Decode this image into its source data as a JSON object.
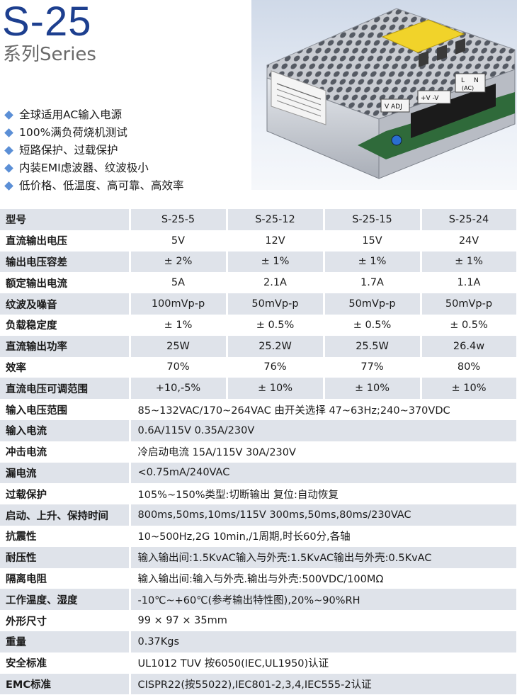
{
  "header": {
    "title": "S-25",
    "subtitle": "系列Series"
  },
  "features": [
    "全球适用AC输入电源",
    "100%满负荷烧机测试",
    "短路保护、过载保护",
    "内装EMI虑波器、纹波极小",
    "低价格、低温度、高可靠、高效率"
  ],
  "photo": {
    "labels": {
      "v_adj": "V ADJ",
      "output": "+V  -V",
      "l": "L",
      "n": "N",
      "ac": "(AC)"
    }
  },
  "table": {
    "header": {
      "label": "型号",
      "models": [
        "S-25-5",
        "S-25-12",
        "S-25-15",
        "S-25-24"
      ]
    },
    "model_rows": [
      {
        "label": "直流输出电压",
        "values": [
          "5V",
          "12V",
          "15V",
          "24V"
        ]
      },
      {
        "label": "输出电压容差",
        "values": [
          "± 2%",
          "± 1%",
          "± 1%",
          "± 1%"
        ]
      },
      {
        "label": "额定输出电流",
        "values": [
          "5A",
          "2.1A",
          "1.7A",
          "1.1A"
        ]
      },
      {
        "label": "纹波及噪音",
        "values": [
          "100mVp-p",
          "50mVp-p",
          "50mVp-p",
          "50mVp-p"
        ]
      },
      {
        "label": "负载稳定度",
        "values": [
          "± 1%",
          "± 0.5%",
          "± 0.5%",
          "± 0.5%"
        ]
      },
      {
        "label": "直流输出功率",
        "values": [
          "25W",
          "25.2W",
          "25.5W",
          "26.4w"
        ]
      },
      {
        "label": "效率",
        "values": [
          "70%",
          "76%",
          "77%",
          "80%"
        ]
      },
      {
        "label": "直流电压可调范围",
        "values": [
          "+10,-5%",
          "± 10%",
          "± 10%",
          "± 10%"
        ]
      }
    ],
    "common_rows": [
      {
        "label": "输入电压范围",
        "value": "85~132VAC/170~264VAC 由开关选择 47~63Hz;240~370VDC"
      },
      {
        "label": "输入电流",
        "value": "0.6A/115V 0.35A/230V"
      },
      {
        "label": "冲击电流",
        "value": "冷启动电流 15A/115V 30A/230V"
      },
      {
        "label": "漏电流",
        "value": "<0.75mA/240VAC"
      },
      {
        "label": "过载保护",
        "value": "105%~150%类型:切断输出  复位:自动恢复"
      },
      {
        "label": "启动、上升、保持时间",
        "value": "800ms,50ms,10ms/115V 300ms,50ms,80ms/230VAC"
      },
      {
        "label": "抗震性",
        "value": "10~500Hz,2G 10min,/1周期,时长60分,各轴"
      },
      {
        "label": "耐压性",
        "value": "输入输出间:1.5KvAC输入与外壳:1.5KvAC输出与外壳:0.5KvAC"
      },
      {
        "label": "隔离电阻",
        "value": "输入输出间:输入与外壳.输出与外壳:500VDC/100MΩ"
      },
      {
        "label": "工作温度、湿度",
        "value": "-10℃~+60℃(参考输出特性图),20%~90%RH"
      },
      {
        "label": "外形尺寸",
        "value": "99 × 97 × 35mm"
      },
      {
        "label": "重量",
        "value": "0.37Kgs"
      },
      {
        "label": "安全标准",
        "value": "UL1012 TUV 按6050(IEC,UL1950)认证"
      },
      {
        "label": "EMC标准",
        "value": "CISPR22(按55022),IEC801-2,3,4,IEC555-2认证"
      }
    ]
  }
}
